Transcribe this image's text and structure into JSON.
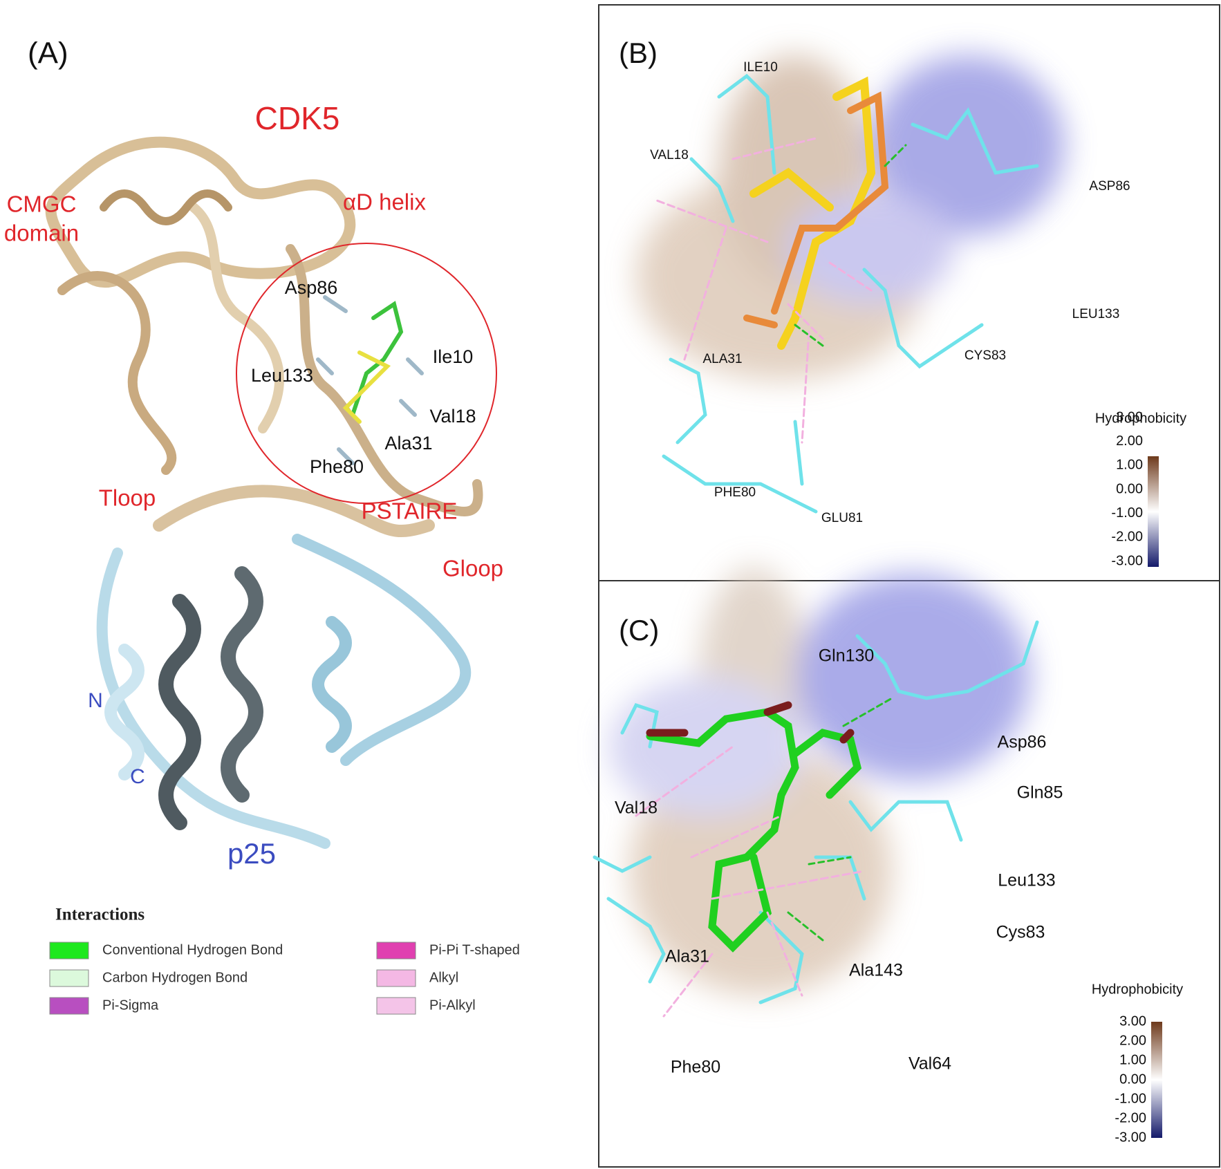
{
  "panel_a": {
    "label": "(A)",
    "protein": "CDK5",
    "annotations": [
      "CMGC",
      "domain",
      "αD helix",
      "Tloop",
      "PSTAIRE",
      "Gloop"
    ],
    "residues": [
      "Asp86",
      "Leu133",
      "Ile10",
      "Val18",
      "Ala31",
      "Phe80"
    ],
    "termini": [
      "N",
      "C"
    ],
    "partner": "p25"
  },
  "legend": {
    "title": "Interactions",
    "items": [
      {
        "name": "Conventional Hydrogen Bond",
        "color": "#1ee81e"
      },
      {
        "name": "Carbon Hydrogen Bond",
        "color": "#dcf9dc"
      },
      {
        "name": "Pi-Sigma",
        "color": "#b84fc0"
      },
      {
        "name": "Pi-Pi T-shaped",
        "color": "#e040b0"
      },
      {
        "name": "Alkyl",
        "color": "#f4b8e4"
      },
      {
        "name": "Pi-Alkyl",
        "color": "#f4c4e8"
      }
    ]
  },
  "panel_b": {
    "label": "(B)",
    "residues": [
      "ILE10",
      "VAL18",
      "ASP86",
      "LEU133",
      "CYS83",
      "ALA31",
      "PHE80",
      "GLU81"
    ],
    "colorbar": {
      "title": "Hydrophobicity",
      "ticks": [
        "3.00",
        "2.00",
        "1.00",
        "0.00",
        "-1.00",
        "-2.00",
        "-3.00"
      ]
    }
  },
  "panel_c": {
    "label": "(C)",
    "residues": [
      "Gln130",
      "Asp86",
      "Gln85",
      "Val18",
      "Leu133",
      "Cys83",
      "Ala31",
      "Ala143",
      "Phe80",
      "Val64"
    ],
    "colorbar": {
      "title": "Hydrophobicity",
      "ticks": [
        "3.00",
        "2.00",
        "1.00",
        "0.00",
        "-1.00",
        "-2.00",
        "-3.00"
      ]
    }
  }
}
